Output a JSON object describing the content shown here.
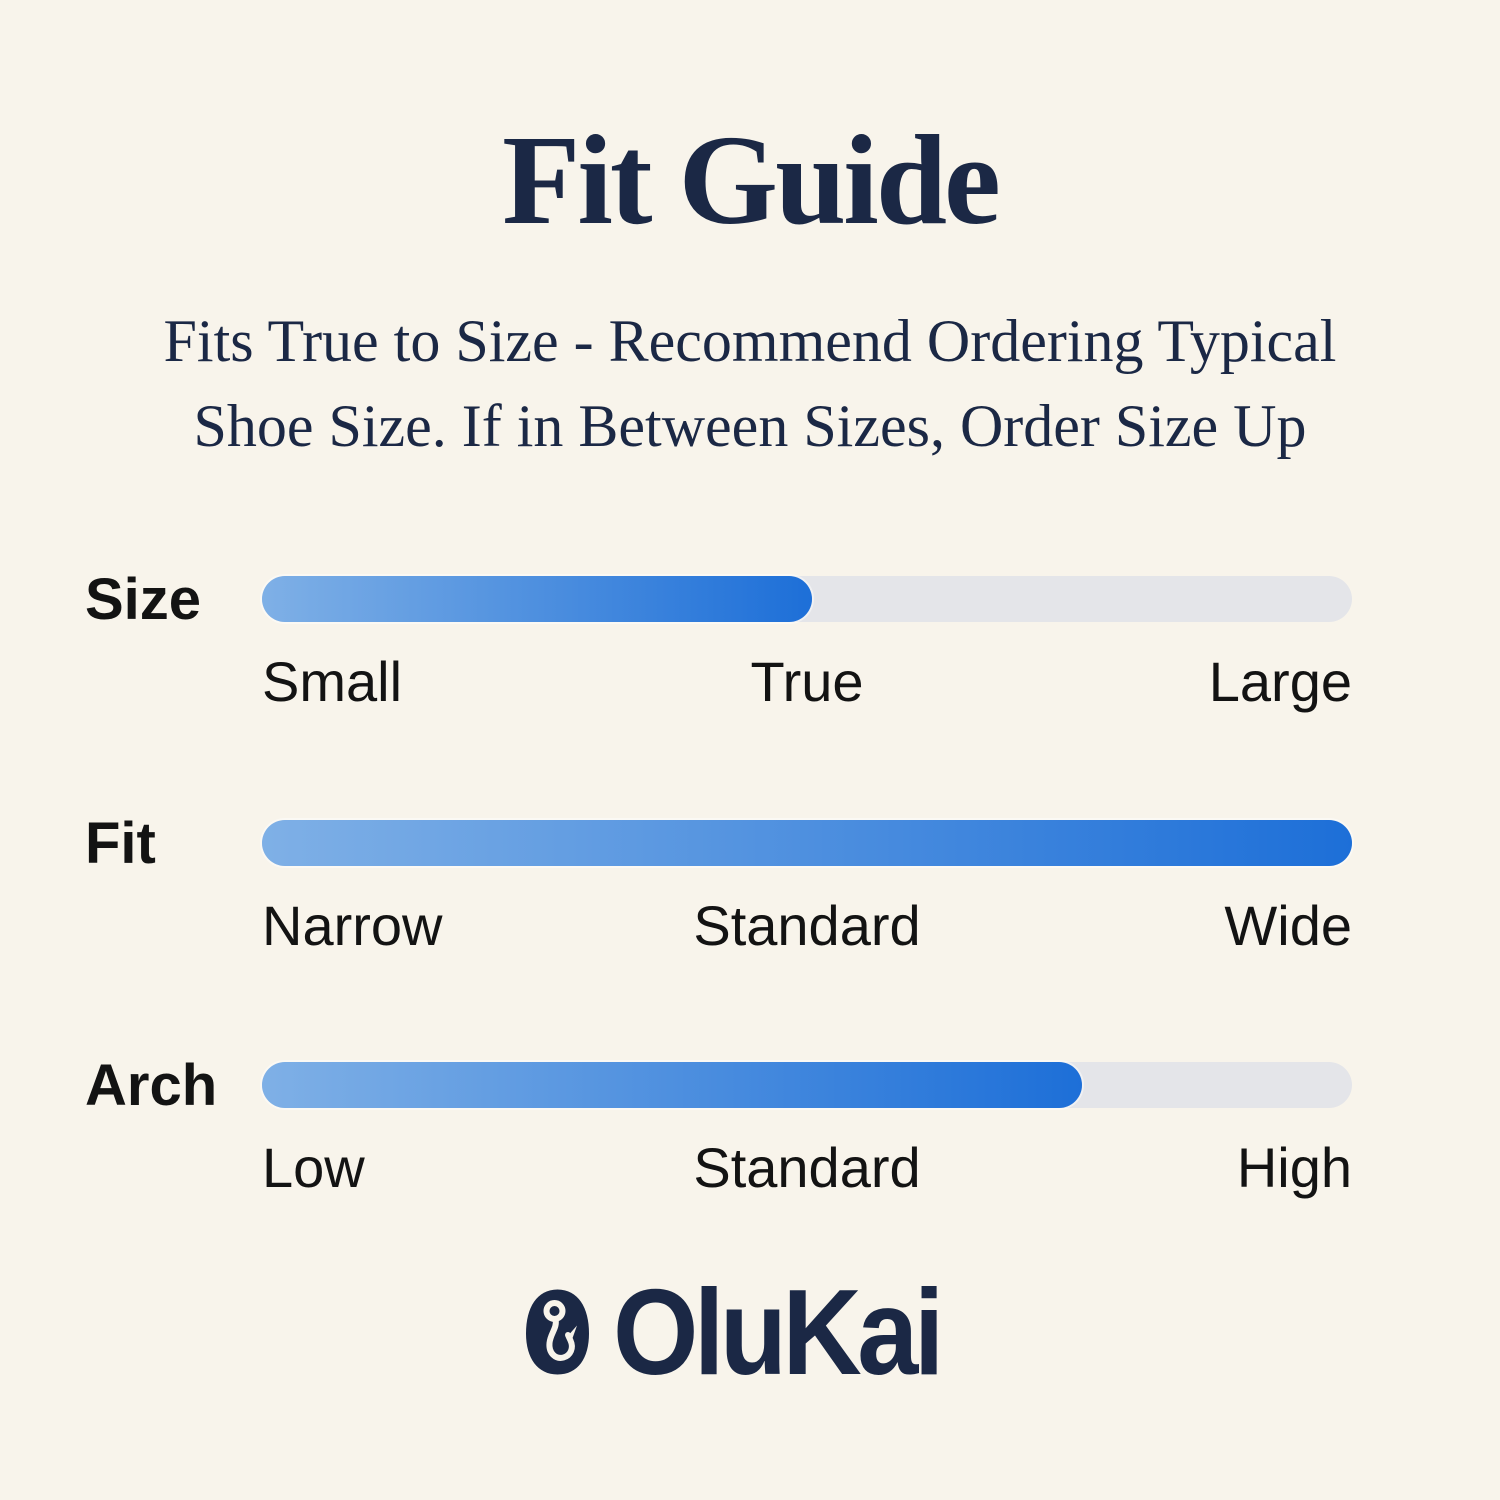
{
  "page": {
    "background": "#f8f4eb"
  },
  "colors": {
    "background": "#f8f4eb",
    "navy": "#1b2845",
    "text": "#131313",
    "track": "#e4e5e9",
    "accent_start": "#7fb0e6",
    "accent_end": "#1d6fd8"
  },
  "title": "Fit Guide",
  "subtitle_lines": [
    "Fits True to Size - Recommend Ordering Typical",
    "Shoe Size. If in Between Sizes, Order Size Up"
  ],
  "chart_data": {
    "type": "bar",
    "title": "Fit Guide",
    "subtitle": "Fits True to Size - Recommend Ordering Typical Shoe Size. If in Between Sizes, Order Size Up",
    "orientation": "horizontal",
    "xlim": [
      0,
      1
    ],
    "grid": false,
    "legend": false,
    "rows": [
      {
        "label": "Size",
        "fill_fraction": 0.505,
        "indicated": "True",
        "scale": {
          "left": "Small",
          "center": "True",
          "right": "Large"
        }
      },
      {
        "label": "Fit",
        "fill_fraction": 1.0,
        "indicated": "Wide",
        "scale": {
          "left": "Narrow",
          "center": "Standard",
          "right": "Wide"
        }
      },
      {
        "label": "Arch",
        "fill_fraction": 0.752,
        "indicated": "Between Standard and High",
        "scale": {
          "left": "Low",
          "center": "Standard",
          "right": "High"
        }
      }
    ]
  },
  "logo": {
    "icon": "fishhook-icon",
    "wordmark": "OluKai"
  }
}
